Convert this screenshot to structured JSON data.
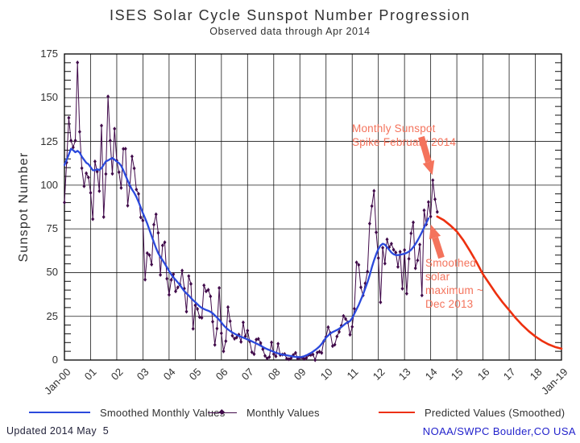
{
  "title": "ISES Solar Cycle Sunspot Number Progression",
  "subtitle": "Observed data through Apr 2014",
  "footer": {
    "updated": "Updated 2014 May  5",
    "credit": "NOAA/SWPC Boulder,CO USA"
  },
  "legend": {
    "items": [
      {
        "label": "Smoothed Monthly Values",
        "color": "#2b49dc"
      },
      {
        "label": "Monthly Values",
        "color": "#400a4a"
      },
      {
        "label": "Predicted Values (Smoothed)",
        "color": "#ed300f"
      }
    ]
  },
  "colors": {
    "monthly": "#400a4a",
    "smoothed": "#2b49dc",
    "predicted": "#ed300f",
    "annotation": "#f4735c",
    "grid": "#1a1a1a",
    "credit_blue": "#2222cc"
  },
  "chart_data": {
    "type": "line",
    "title": "ISES Solar Cycle Sunspot Number Progression",
    "subtitle": "Observed data through Apr 2014",
    "xlabel": "",
    "ylabel": "Sunspot Number",
    "ylim": [
      0,
      175
    ],
    "y_ticks": [
      0,
      25,
      50,
      75,
      100,
      125,
      150,
      175
    ],
    "y_minor_step": 5,
    "x_tick_labels": [
      "Jan-00",
      "01",
      "02",
      "03",
      "04",
      "05",
      "06",
      "07",
      "08",
      "09",
      "10",
      "11",
      "12",
      "13",
      "14",
      "15",
      "16",
      "17",
      "18",
      "Jan-19"
    ],
    "x_span_years": 19,
    "grid": true,
    "legend_position": "bottom",
    "series": [
      {
        "name": "Monthly Values",
        "color": "#400a4a",
        "markers": true,
        "start": "2000-01",
        "interval_months": 1,
        "values": [
          90.1,
          112.9,
          138.5,
          125.5,
          121.6,
          125.5,
          170.1,
          130.5,
          109.7,
          99.4,
          106.8,
          104.4,
          95.6,
          80.6,
          113.5,
          107.7,
          96.6,
          134,
          81.8,
          106.4,
          150.7,
          125.5,
          106.5,
          132.2,
          114.1,
          107.4,
          98.4,
          120.7,
          120.8,
          88.3,
          99.6,
          116.4,
          109.6,
          97.5,
          95,
          81.6,
          79.7,
          46,
          61.1,
          60,
          54.6,
          77.4,
          83.3,
          72.7,
          48.7,
          65.5,
          67.3,
          46.5,
          37.3,
          45.8,
          49.1,
          39.3,
          41.5,
          43.2,
          51.1,
          40.9,
          27.7,
          48,
          43.5,
          17.9,
          31.3,
          29.2,
          24.5,
          24.2,
          42.7,
          39.3,
          40.1,
          36.4,
          21.9,
          8.7,
          18,
          41.2,
          15.3,
          5,
          10.8,
          30.2,
          22.2,
          13.9,
          12.2,
          12.9,
          14.5,
          10.4,
          21.5,
          13.6,
          16.8,
          10.7,
          4.5,
          3.4,
          11.7,
          12.1,
          9.7,
          6.2,
          2.4,
          0.9,
          1.7,
          10.1,
          3.4,
          2.1,
          9.3,
          2.9,
          3.2,
          3.4,
          0.8,
          0.5,
          1.1,
          2.9,
          4.1,
          0.8,
          1.3,
          1.4,
          0.7,
          1.2,
          2.9,
          2.9,
          3.2,
          0,
          4.3,
          4.8,
          4.1,
          10.8,
          13.2,
          18.8,
          15.4,
          8,
          8.8,
          13.5,
          16.1,
          19.6,
          25.2,
          23.5,
          21.6,
          14.5,
          19,
          29.4,
          55.8,
          54.4,
          41.6,
          37,
          43.9,
          50.6,
          78,
          88,
          96.7,
          73,
          58.3,
          33,
          64.2,
          55.2,
          69,
          64.5,
          66.5,
          63.1,
          61.5,
          53.3,
          61.9,
          40.8,
          62.9,
          38,
          57.9,
          72.4,
          78.7,
          52.5,
          57,
          66,
          37,
          85.6,
          77.6,
          90.3,
          82,
          102.8,
          91.9,
          84.7
        ]
      },
      {
        "name": "Smoothed Monthly Values",
        "color": "#2b49dc",
        "markers": false,
        "start": "2000-01",
        "interval_months": 1,
        "values": [
          111.5,
          114.5,
          117.5,
          120.8,
          120,
          118.8,
          119.6,
          118.6,
          116.3,
          114.5,
          112.8,
          112,
          110.3,
          108.5,
          108.5,
          109.1,
          108.6,
          109.8,
          111.6,
          113.6,
          114.1,
          114.9,
          115.5,
          114.6,
          113.5,
          112.6,
          111.1,
          108.5,
          105.5,
          102.7,
          99.9,
          97.5,
          95.6,
          93.3,
          90.4,
          87.3,
          84,
          81.1,
          78,
          74.4,
          70.9,
          67.4,
          64,
          61.1,
          59,
          57.1,
          55.1,
          53,
          50.9,
          48.9,
          47.2,
          45.8,
          44.4,
          42.9,
          41.1,
          39.4,
          38.1,
          36.9,
          35.5,
          34.2,
          33.1,
          31.9,
          30.7,
          29.8,
          29.2,
          28.6,
          28.2,
          27.6,
          26.7,
          25.5,
          24.3,
          23,
          21.5,
          19.9,
          18.6,
          17.5,
          16.6,
          15.8,
          15.1,
          14.4,
          13.8,
          13.3,
          12.8,
          12.3,
          11.8,
          11.3,
          10.7,
          10.1,
          9.5,
          8.9,
          8.2,
          7.5,
          6.8,
          6.2,
          5.7,
          5.2,
          4.7,
          4.2,
          3.8,
          3.4,
          3.1,
          2.9,
          2.7,
          2.5,
          2.3,
          2,
          1.8,
          1.7,
          1.7,
          1.8,
          2.2,
          2.7,
          3.3,
          4,
          4.8,
          5.7,
          6.7,
          7.8,
          9.2,
          11,
          12.8,
          14,
          15.2,
          16,
          16.6,
          17.2,
          17.9,
          18.8,
          19.9,
          20.9,
          21.7,
          22.3,
          24,
          26.5,
          29,
          31.5,
          34.5,
          37.5,
          41,
          44.5,
          48.5,
          53,
          57,
          60.5,
          63.5,
          65.5,
          66.5,
          66,
          64.5,
          63,
          61.5,
          60.5,
          60,
          60,
          60.2,
          60.5,
          60.8,
          61.3,
          62,
          63,
          64.5,
          66.3,
          68.4,
          70.7,
          73.2,
          75.8,
          78.4,
          81
        ]
      },
      {
        "name": "Predicted Values (Smoothed)",
        "color": "#ed300f",
        "markers": false,
        "start": "2014-04",
        "interval_months": 3,
        "values": [
          82,
          80,
          77,
          73.5,
          68.5,
          62.5,
          56,
          49,
          43.5,
          38,
          33,
          28.5,
          24,
          20,
          16.5,
          13.5,
          11,
          9,
          7.5,
          6.5
        ]
      }
    ],
    "annotations": [
      {
        "id": "monthly-spike",
        "lines": [
          "Monthly Sunspot",
          "Spike February 2014"
        ],
        "color": "#f4735c"
      },
      {
        "id": "smoothed-max",
        "lines": [
          "Smoothed",
          "solar",
          "maximum ~",
          "Dec 2013"
        ],
        "color": "#f4735c"
      }
    ]
  }
}
